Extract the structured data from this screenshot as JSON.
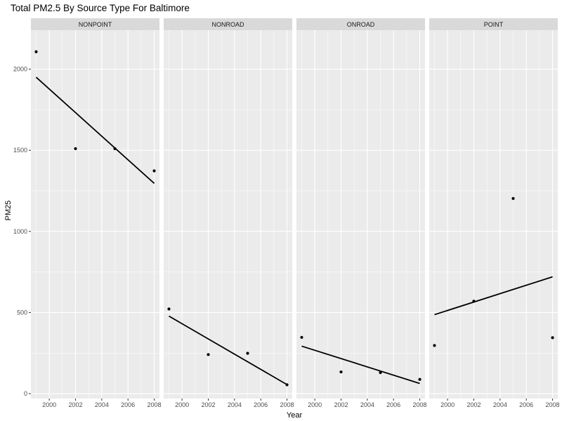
{
  "chart_data": {
    "type": "scatter",
    "title": "Total PM2.5 By Source Type For Baltimore",
    "xlabel": "Year",
    "ylabel": "PM25",
    "xlim": [
      1998.6,
      2008.4
    ],
    "ylim": [
      -30,
      2240
    ],
    "x_ticks": [
      2000,
      2002,
      2004,
      2006,
      2008
    ],
    "y_ticks": [
      0,
      500,
      1000,
      1500,
      2000
    ],
    "grid": true,
    "trendline": "linear fit per panel",
    "colors": {
      "panel_bg": "#ebebeb",
      "strip_bg": "#d9d9d9",
      "grid": "#ffffff",
      "points": "#000000",
      "line": "#000000"
    },
    "panels": [
      {
        "name": "NONPOINT",
        "x": [
          1999,
          2002,
          2005,
          2008
        ],
        "y": [
          2107,
          1510,
          1510,
          1373
        ],
        "fit": [
          [
            1999,
            1950
          ],
          [
            2008,
            1296
          ]
        ]
      },
      {
        "name": "NONROAD",
        "x": [
          1999,
          2002,
          2005,
          2008
        ],
        "y": [
          522,
          241,
          249,
          55
        ],
        "fit": [
          [
            1999,
            478
          ],
          [
            2008,
            56
          ]
        ]
      },
      {
        "name": "ONROAD",
        "x": [
          1999,
          2002,
          2005,
          2008
        ],
        "y": [
          347,
          134,
          130,
          88
        ],
        "fit": [
          [
            1999,
            293
          ],
          [
            2008,
            63
          ]
        ]
      },
      {
        "name": "POINT",
        "x": [
          1999,
          2002,
          2005,
          2008
        ],
        "y": [
          297,
          570,
          1203,
          345
        ],
        "fit": [
          [
            1999,
            487
          ],
          [
            2008,
            720
          ]
        ]
      }
    ]
  }
}
